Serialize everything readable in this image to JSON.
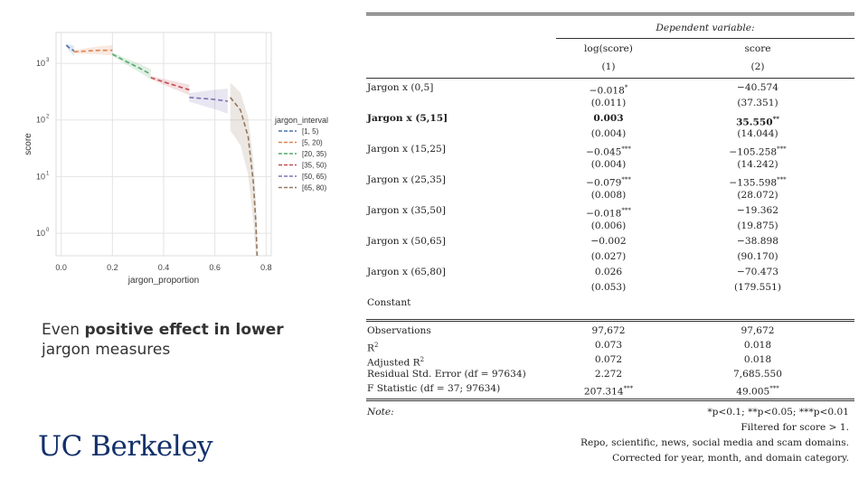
{
  "chart_data": {
    "type": "line",
    "xlabel": "jargon_proportion",
    "ylabel": "score",
    "yscale": "log",
    "xlim": [
      -0.02,
      0.82
    ],
    "ylim": [
      0.4,
      3500
    ],
    "x_ticks": [
      "0.0",
      "0.2",
      "0.4",
      "0.6",
      "0.8"
    ],
    "x_tick_values": [
      0.0,
      0.2,
      0.4,
      0.6,
      0.8
    ],
    "y_tick_values": [
      1,
      10,
      100,
      1000
    ],
    "y_ticks": [
      "10",
      "10",
      "10",
      "10"
    ],
    "y_tick_exps": [
      "0",
      "1",
      "2",
      "3"
    ],
    "legend_title": "jargon_interval",
    "legend_position": "right",
    "grid": true,
    "series": [
      {
        "name": "[1, 5)",
        "color": "#4c72b0",
        "x": [
          0.02,
          0.03,
          0.04,
          0.05
        ],
        "y": [
          2100,
          1900,
          1800,
          1650
        ]
      },
      {
        "name": "[5, 20)",
        "color": "#dd8452",
        "x": [
          0.05,
          0.1,
          0.15,
          0.2
        ],
        "y": [
          1600,
          1650,
          1700,
          1700
        ]
      },
      {
        "name": "[20, 35)",
        "color": "#55a868",
        "x": [
          0.2,
          0.25,
          0.3,
          0.35
        ],
        "y": [
          1450,
          1100,
          850,
          640
        ]
      },
      {
        "name": "[35, 50)",
        "color": "#c44e52",
        "x": [
          0.35,
          0.4,
          0.45,
          0.5
        ],
        "y": [
          560,
          470,
          400,
          340
        ]
      },
      {
        "name": "[50, 65)",
        "color": "#8172b2",
        "x": [
          0.5,
          0.55,
          0.6,
          0.65
        ],
        "y": [
          250,
          240,
          230,
          215
        ]
      },
      {
        "name": "[65, 80)",
        "color": "#937860",
        "x": [
          0.66,
          0.7,
          0.73,
          0.75,
          0.76,
          0.765
        ],
        "y": [
          250,
          150,
          50,
          8,
          1.5,
          0.4
        ]
      }
    ]
  },
  "caption": {
    "pre": "Even ",
    "bold": "positive effect in lower",
    "rest": "jargon measures"
  },
  "logo": "UC Berkeley",
  "table": {
    "dep_var": "Dependent variable:",
    "col1": "log(score)",
    "col2": "score",
    "num1": "(1)",
    "num2": "(2)",
    "rows": [
      {
        "label": "Jargon x (0,5]",
        "v1": "−0.018*",
        "v2": "−40.574",
        "s1": "(0.011)",
        "s2": "(37.351)",
        "bold": false
      },
      {
        "label": "Jargon x (5,15]",
        "v1": "0.003",
        "v2": "35.550**",
        "s1": "(0.004)",
        "s2": "(14.044)",
        "bold": true
      },
      {
        "label": "Jargon x (15,25]",
        "v1": "−0.045***",
        "v2": "−105.258***",
        "s1": "(0.004)",
        "s2": "(14.242)",
        "bold": false
      },
      {
        "label": "Jargon x (25,35]",
        "v1": "−0.079***",
        "v2": "−135.598***",
        "s1": "(0.008)",
        "s2": "(28.072)",
        "bold": false
      },
      {
        "label": "Jargon x (35,50]",
        "v1": "−0.018***",
        "v2": "−19.362",
        "s1": "(0.006)",
        "s2": "(19.875)",
        "bold": false
      },
      {
        "label": "Jargon x (50,65]",
        "v1": "−0.002",
        "v2": "−38.898",
        "s1": "(0.027)",
        "s2": "(90.170)",
        "bold": false
      },
      {
        "label": "Jargon x (65,80]",
        "v1": "0.026",
        "v2": "−70.473",
        "s1": "(0.053)",
        "s2": "(179.551)",
        "bold": false
      }
    ],
    "constant": "Constant",
    "stats": [
      {
        "label": "Observations",
        "v1": "97,672",
        "v2": "97,672"
      },
      {
        "label": "R2",
        "v1": "0.073",
        "v2": "0.018"
      },
      {
        "label": "Adjusted R2",
        "v1": "0.072",
        "v2": "0.018"
      },
      {
        "label": "Residual Std. Error (df = 97634)",
        "v1": "2.272",
        "v2": "7,685.550"
      },
      {
        "label": "F Statistic (df = 37; 97634)",
        "v1": "207.314***",
        "v2": "49.005***"
      }
    ],
    "note_label": "Note:",
    "notes": [
      "*p<0.1; **p<0.05; ***p<0.01",
      "Filtered for score > 1.",
      "Repo, scientific, news, social media and scam domains.",
      "Corrected for year, month, and domain category."
    ]
  }
}
